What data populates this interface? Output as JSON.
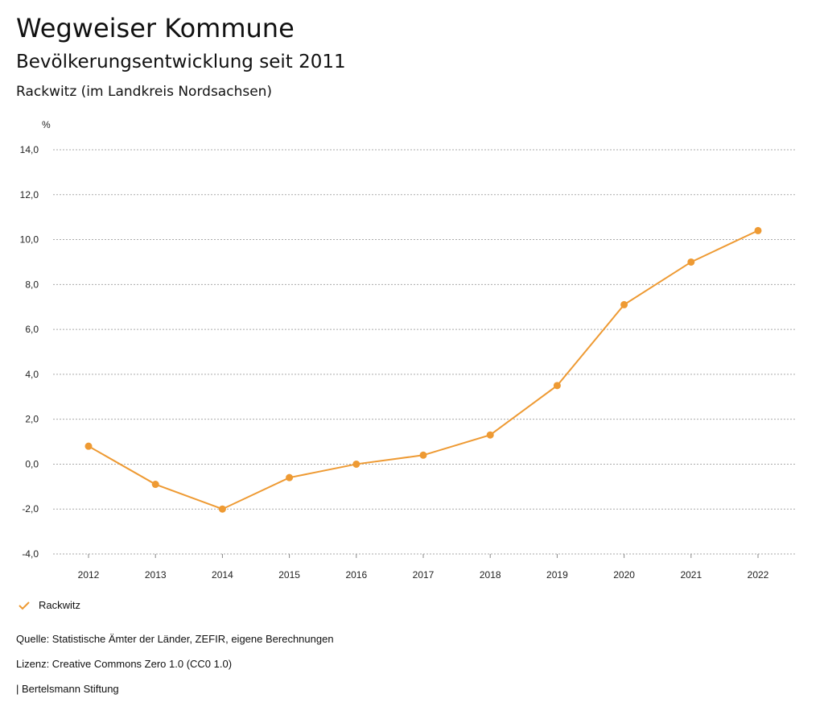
{
  "header": {
    "title": "Wegweiser Kommune",
    "subtitle": "Bevölkerungsentwicklung seit 2011",
    "region": "Rackwitz (im Landkreis Nordsachsen)"
  },
  "chart_data": {
    "type": "line",
    "ylabel": "%",
    "x": [
      "2012",
      "2013",
      "2014",
      "2015",
      "2016",
      "2017",
      "2018",
      "2019",
      "2020",
      "2021",
      "2022"
    ],
    "series": [
      {
        "name": "Rackwitz",
        "color": "#EE9A33",
        "values": [
          0.8,
          -0.9,
          -2.0,
          -0.6,
          0.0,
          0.4,
          1.3,
          3.5,
          7.1,
          9.0,
          10.4
        ]
      }
    ],
    "yticks": [
      "14,0",
      "12,0",
      "10,0",
      "8,0",
      "6,0",
      "4,0",
      "2,0",
      "0,0",
      "-2,0",
      "-4,0"
    ],
    "ytick_values": [
      14,
      12,
      10,
      8,
      6,
      4,
      2,
      0,
      -2,
      -4
    ],
    "ylim": [
      -4,
      14
    ],
    "grid": true,
    "legend": "bottom-left"
  },
  "footer": {
    "source": "Quelle: Statistische Ämter der Länder, ZEFIR, eigene Berechnungen",
    "license": "Lizenz: Creative Commons Zero 1.0 (CC0 1.0)",
    "publisher": "| Bertelsmann Stiftung"
  }
}
